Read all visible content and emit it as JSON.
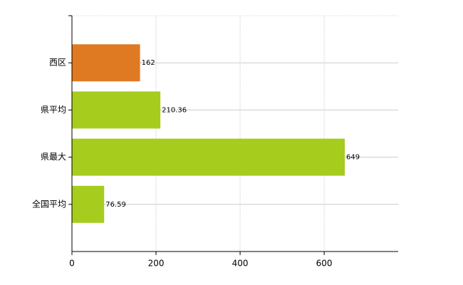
{
  "chart_data": {
    "type": "hbar",
    "categories": [
      "西区",
      "県平均",
      "県最大",
      "全国平均"
    ],
    "values": [
      162,
      210.36,
      649,
      76.59
    ],
    "colors": [
      "#e07a22",
      "#a6cc1e",
      "#a6cc1e",
      "#a6cc1e"
    ],
    "xlim": [
      0,
      776
    ],
    "xticks": [
      0,
      200,
      400,
      600
    ],
    "grid": true
  }
}
